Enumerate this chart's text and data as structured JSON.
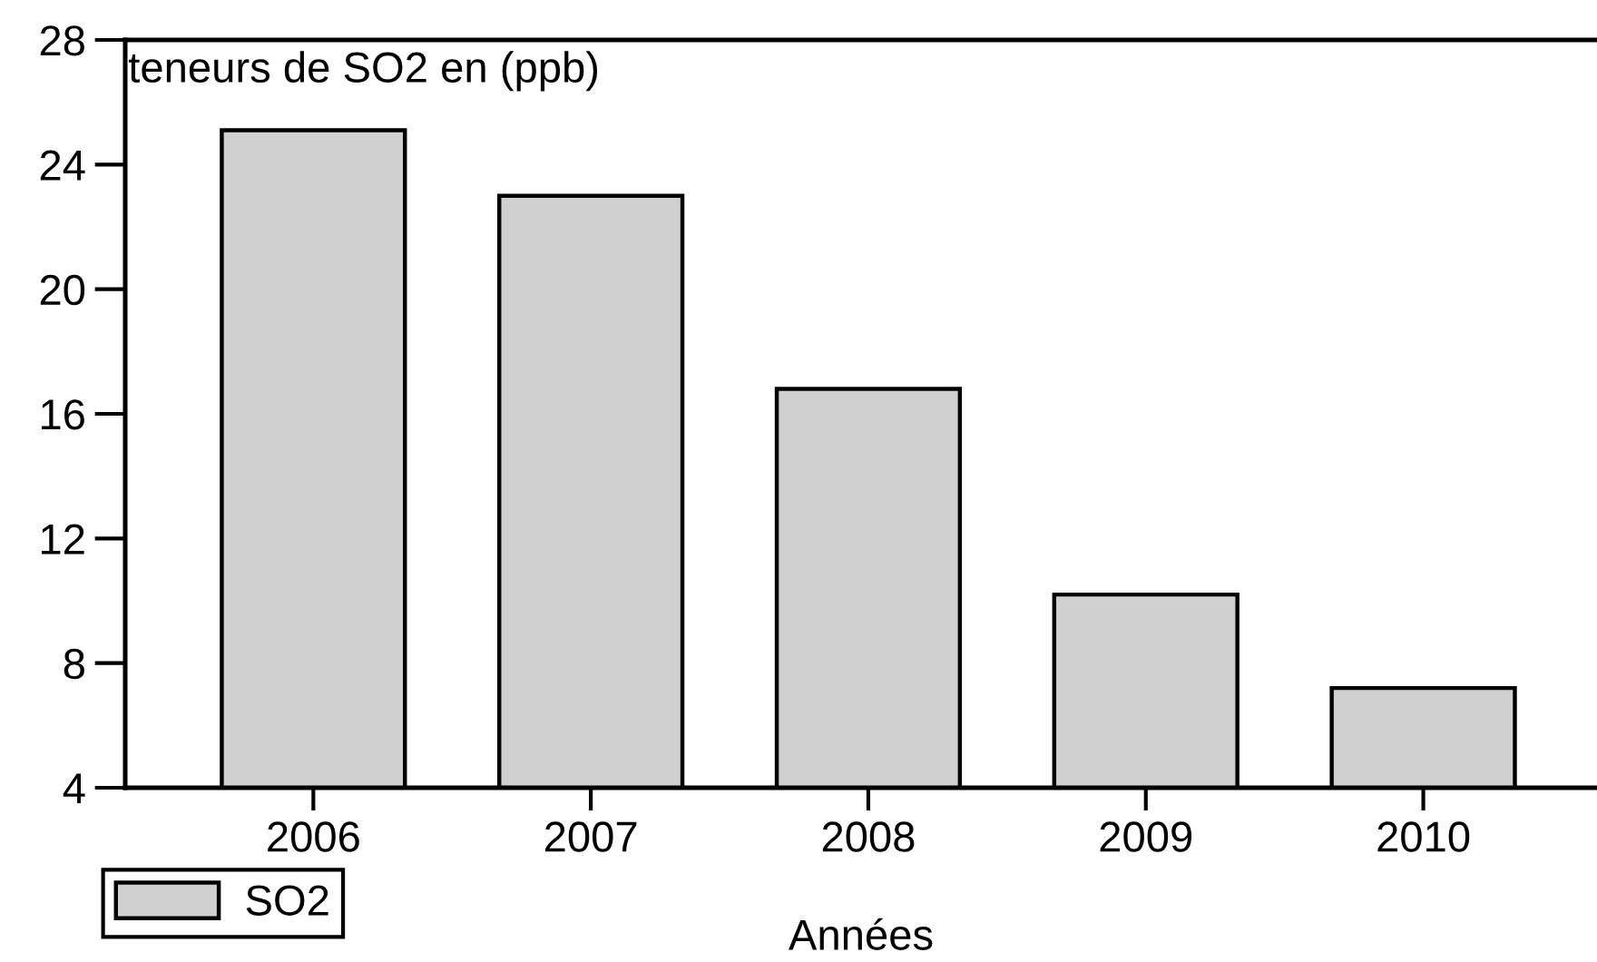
{
  "chart_data": {
    "type": "bar",
    "ylabel": "teneurs de SO2 en (ppb)",
    "xlabel": "Années",
    "categories": [
      "2006",
      "2007",
      "2008",
      "2009",
      "2010"
    ],
    "series": [
      {
        "name": "SO2",
        "color": "#d0d0d0",
        "values": [
          25.1,
          23.0,
          16.8,
          10.2,
          7.2
        ]
      }
    ],
    "ylim": [
      4,
      28
    ],
    "yticks": [
      4,
      8,
      12,
      16,
      20,
      24,
      28
    ],
    "grid": false,
    "legend": "bottom left"
  }
}
